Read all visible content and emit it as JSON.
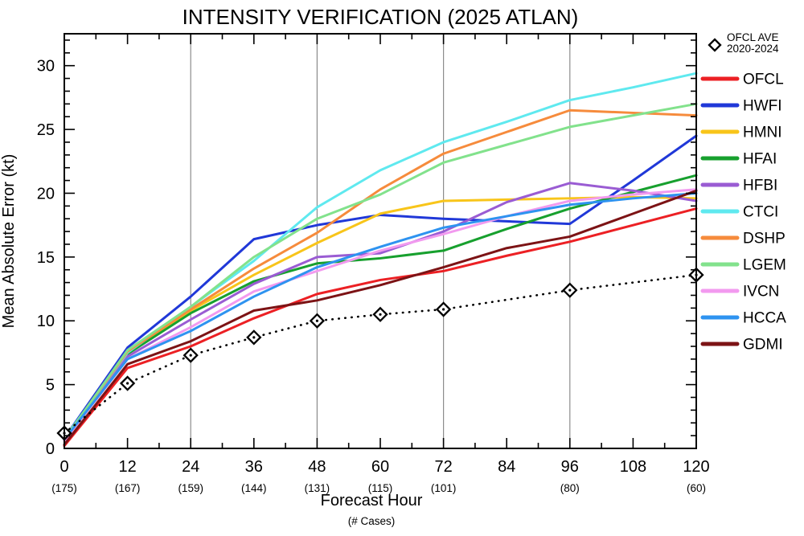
{
  "chart_data": {
    "type": "line",
    "title": "INTENSITY VERIFICATION (2025 ATLAN)",
    "xlabel": "Forecast Hour",
    "xlabel_note": "(# Cases)",
    "ylabel": "Mean Absolute Error (kt)",
    "xlim": [
      0,
      120
    ],
    "ylim": [
      0,
      32.5
    ],
    "x_major_tick_step": 12,
    "x_minor_tick_step": 6,
    "y_major_tick_step": 5,
    "y_minor_tick_step": 1,
    "gridlines_at_x": [
      24,
      48,
      72,
      96
    ],
    "grid_color": "#8c8c8c",
    "x": [
      0,
      12,
      24,
      36,
      48,
      60,
      72,
      84,
      96,
      108,
      120
    ],
    "x_tick_labels": [
      "0",
      "12",
      "24",
      "36",
      "48",
      "60",
      "72",
      "84",
      "96",
      "108",
      "120"
    ],
    "case_counts": [
      "(175)",
      "(167)",
      "(159)",
      "(144)",
      "(131)",
      "(115)",
      "(101)",
      "",
      "(80)",
      "",
      "(60)"
    ],
    "series": [
      {
        "name": "OFCL",
        "color": "#ec2024",
        "values": [
          0.2,
          6.3,
          8.0,
          10.2,
          12.1,
          13.2,
          13.9,
          15.1,
          16.2,
          17.5,
          18.8
        ]
      },
      {
        "name": "HWFI",
        "color": "#2038d8",
        "values": [
          0.8,
          7.9,
          11.9,
          16.4,
          17.5,
          18.3,
          18.0,
          17.8,
          17.6,
          21.0,
          24.5
        ]
      },
      {
        "name": "HMNI",
        "color": "#f8c51a",
        "values": [
          0.8,
          7.4,
          10.8,
          13.6,
          16.1,
          18.4,
          19.4,
          19.5,
          19.6,
          19.7,
          19.6
        ]
      },
      {
        "name": "HFAI",
        "color": "#17a02e",
        "values": [
          0.8,
          7.4,
          10.6,
          13.1,
          14.5,
          14.9,
          15.5,
          17.2,
          18.8,
          20.1,
          21.4
        ]
      },
      {
        "name": "HFBI",
        "color": "#9a5cd3",
        "values": [
          0.8,
          7.2,
          10.1,
          12.9,
          15.0,
          15.3,
          17.0,
          19.3,
          20.8,
          20.2,
          19.4
        ]
      },
      {
        "name": "CTCI",
        "color": "#5fe9ef",
        "values": [
          0.8,
          7.5,
          11.1,
          14.7,
          18.9,
          21.8,
          24.0,
          25.6,
          27.3,
          28.3,
          29.4
        ]
      },
      {
        "name": "DSHP",
        "color": "#f68b3c",
        "values": [
          0.7,
          7.6,
          10.9,
          14.1,
          16.9,
          20.3,
          23.1,
          24.8,
          26.5,
          26.3,
          26.1
        ]
      },
      {
        "name": "LGEM",
        "color": "#82e28c",
        "values": [
          0.7,
          7.7,
          11.1,
          15.0,
          18.0,
          19.9,
          22.4,
          23.8,
          25.2,
          26.1,
          27.0
        ]
      },
      {
        "name": "IVCN",
        "color": "#f29aef",
        "values": [
          0.6,
          7.0,
          9.5,
          12.3,
          13.9,
          15.5,
          16.8,
          18.2,
          19.4,
          19.9,
          20.3
        ]
      },
      {
        "name": "HCCA",
        "color": "#2e93f0",
        "values": [
          0.7,
          7.0,
          9.2,
          11.9,
          14.2,
          15.8,
          17.3,
          18.2,
          19.1,
          19.6,
          20.0
        ]
      },
      {
        "name": "GDMI",
        "color": "#7c1315",
        "values": [
          0.3,
          6.6,
          8.4,
          10.8,
          11.6,
          12.8,
          14.2,
          15.7,
          16.6,
          18.4,
          20.2
        ]
      }
    ],
    "reference_series": {
      "name": "OFCL AVE",
      "sublabel": "2020-2024",
      "color": "#000000",
      "line_style": "dotted",
      "marker": "open-diamond",
      "x": [
        0,
        12,
        24,
        36,
        48,
        60,
        72,
        96,
        120
      ],
      "values": [
        1.2,
        5.1,
        7.3,
        8.7,
        10.0,
        10.5,
        10.9,
        12.4,
        13.6
      ]
    },
    "legend_position": "right"
  }
}
